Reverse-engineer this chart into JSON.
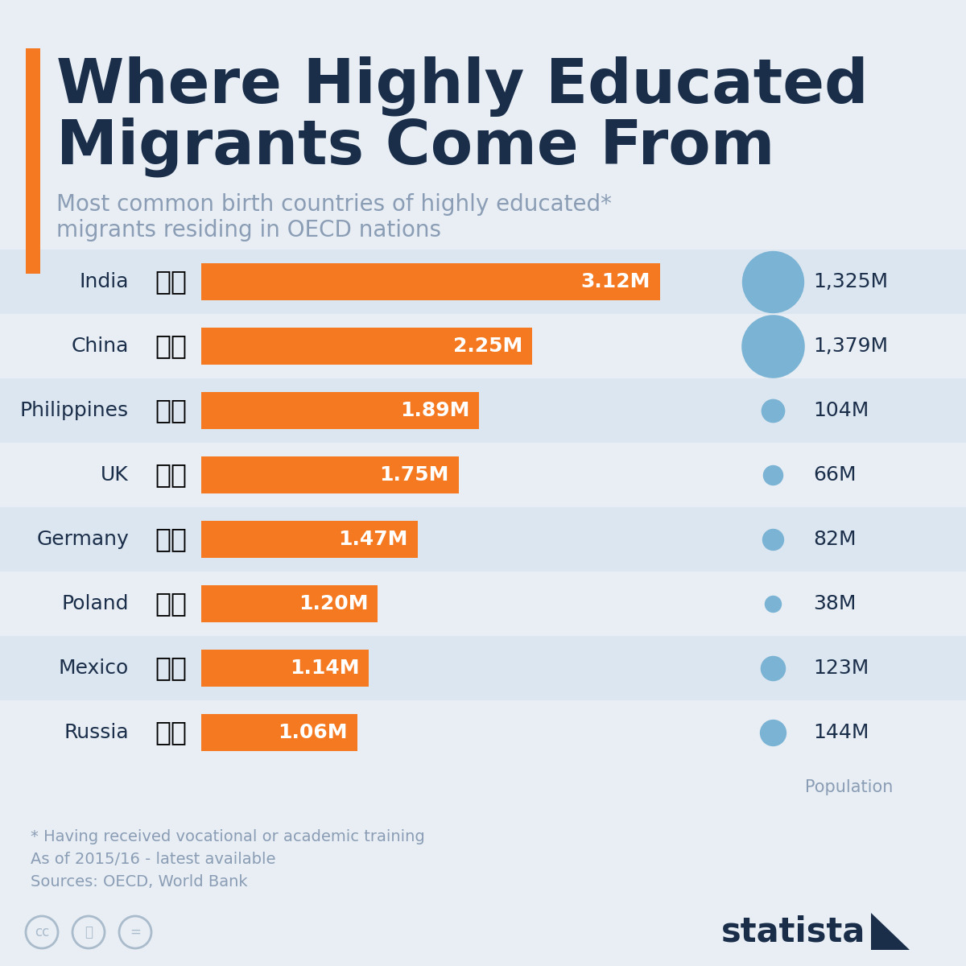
{
  "title_line1": "Where Highly Educated",
  "title_line2": "Migrants Come From",
  "subtitle_line1": "Most common birth countries of highly educated*",
  "subtitle_line2": "migrants residing in OECD nations",
  "countries": [
    "India",
    "China",
    "Philippines",
    "UK",
    "Germany",
    "Poland",
    "Mexico",
    "Russia"
  ],
  "migrant_values": [
    3.12,
    2.25,
    1.89,
    1.75,
    1.47,
    1.2,
    1.14,
    1.06
  ],
  "migrant_labels": [
    "3.12M",
    "2.25M",
    "1.89M",
    "1.75M",
    "1.47M",
    "1.20M",
    "1.14M",
    "1.06M"
  ],
  "population_values": [
    1325,
    1379,
    104,
    66,
    82,
    38,
    123,
    144
  ],
  "population_labels": [
    "1,325M",
    "1,379M",
    "104M",
    "66M",
    "82M",
    "38M",
    "123M",
    "144M"
  ],
  "bar_color": "#F47920",
  "bg_color": "#E8EEF4",
  "row_even_color": "#dce6f0",
  "row_odd_color": "#E8EEF4",
  "title_color": "#1a2e4a",
  "subtitle_color": "#8a9db5",
  "pop_dot_color": "#7ab3d4",
  "footnote_line1": "* Having received vocational or academic training",
  "footnote_line2": "As of 2015/16 - latest available",
  "footnote_line3": "Sources: OECD, World Bank",
  "pop_label": "Population",
  "flag_emojis": [
    "🇮🇳",
    "🇨🇳",
    "🇵🇭",
    "🇬🇧",
    "🇩🇪",
    "🇵🇱",
    "🇲🇽",
    "🇷🇺"
  ],
  "accent_color": "#F47920"
}
